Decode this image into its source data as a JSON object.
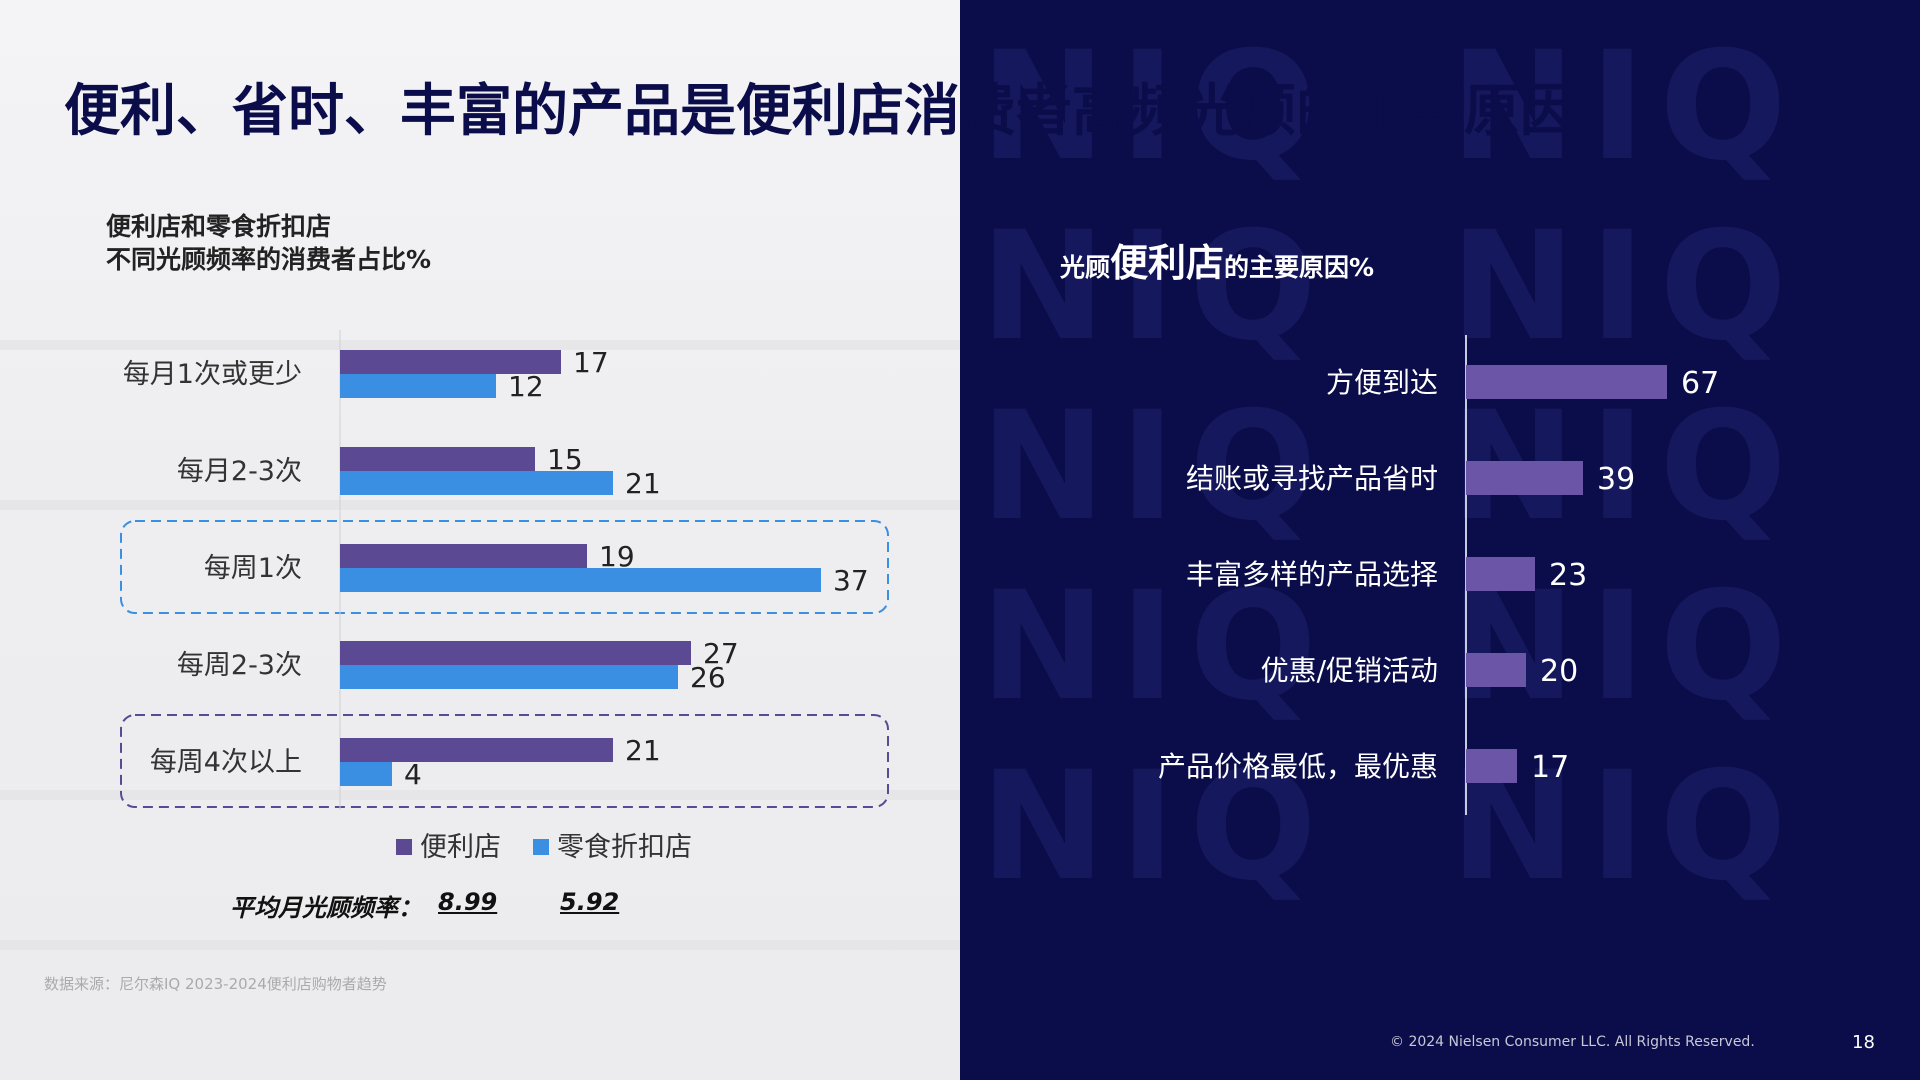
{
  "title": "便利、省时、丰富的产品是便利店消费者高频光顾的主要原因",
  "left_chart": {
    "subtitle_line1": "便利店和零食折扣店",
    "subtitle_line2": "不同光顾频率的消费者占比%",
    "chart_data": {
      "type": "bar",
      "orientation": "horizontal",
      "categories": [
        "每月1次或更少",
        "每月2-3次",
        "每周1次",
        "每周2-3次",
        "每周4次以上"
      ],
      "series": [
        {
          "name": "便利店",
          "color": "#5b4a93",
          "values": [
            17,
            15,
            19,
            27,
            21
          ]
        },
        {
          "name": "零食折扣店",
          "color": "#3b8fe3",
          "values": [
            12,
            21,
            37,
            26,
            4
          ]
        }
      ],
      "xlim": [
        0,
        40
      ],
      "highlighted_categories": [
        "每周1次",
        "每周4次以上"
      ],
      "legend_position": "bottom"
    },
    "avg_label": "平均月光顾频率：",
    "avg_values": [
      "8.99",
      "5.92"
    ]
  },
  "right_chart": {
    "subtitle_prefix": "光顾",
    "subtitle_highlight": "便利店",
    "subtitle_suffix": "的主要原因%",
    "chart_data": {
      "type": "bar",
      "orientation": "horizontal",
      "categories": [
        "方便到达",
        "结账或寻找产品省时",
        "丰富多样的产品选择",
        "优惠/促销活动",
        "产品价格最低，最优惠"
      ],
      "values": [
        67,
        39,
        23,
        20,
        17
      ],
      "color": "#6a55a6",
      "xlim": [
        0,
        100
      ]
    }
  },
  "watermark": "NIQ",
  "source": "数据来源：尼尔森IQ 2023-2024便利店购物者趋势",
  "copyright": "© 2024 Nielsen Consumer LLC. All Rights Reserved.",
  "page_number": "18"
}
